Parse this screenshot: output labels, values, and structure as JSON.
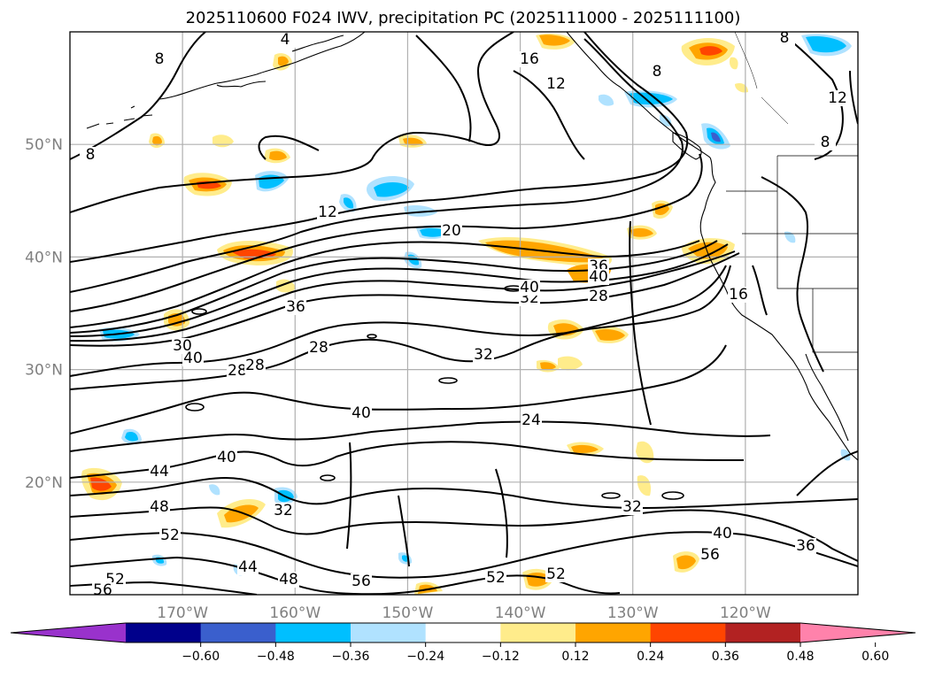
{
  "title": "2025110600 F024 IWV, precipitation PC (2025111000 - 2025111100)",
  "map": {
    "lon_range": [
      -180,
      -110
    ],
    "lat_range": [
      10,
      60
    ],
    "lat_ticks": [
      {
        "value": 20,
        "label": "20°N"
      },
      {
        "value": 30,
        "label": "30°N"
      },
      {
        "value": 40,
        "label": "40°N"
      },
      {
        "value": 50,
        "label": "50°N"
      }
    ],
    "lon_ticks": [
      {
        "value": -170,
        "label": "170°W"
      },
      {
        "value": -160,
        "label": "160°W"
      },
      {
        "value": -150,
        "label": "150°W"
      },
      {
        "value": -140,
        "label": "140°W"
      },
      {
        "value": -130,
        "label": "130°W"
      },
      {
        "value": -120,
        "label": "120°W"
      }
    ],
    "contour_labels": [
      "4",
      "8",
      "8",
      "8",
      "8",
      "8",
      "12",
      "12",
      "12",
      "16",
      "16",
      "20",
      "24",
      "28",
      "28",
      "28",
      "28",
      "30",
      "32",
      "32",
      "32",
      "32",
      "36",
      "36",
      "36",
      "40",
      "40",
      "40",
      "40",
      "40",
      "40",
      "44",
      "44",
      "48",
      "48",
      "52",
      "52",
      "52",
      "52",
      "56",
      "56",
      "56"
    ]
  },
  "colorbar": {
    "colors": [
      "#9932CC",
      "#00008B",
      "#3A5FCD",
      "#00BFFF",
      "#B0E2FF",
      "#FFFFFF",
      "#FFEC8B",
      "#FFA500",
      "#FF4500",
      "#B22222",
      "#FF82AB"
    ],
    "tick_labels": [
      "−0.60",
      "−0.48",
      "−0.36",
      "−0.24",
      "−0.12",
      "0.12",
      "0.24",
      "0.36",
      "0.48",
      "0.60"
    ]
  },
  "colors": {
    "contour": "#000000",
    "grid": "#b0b0b0",
    "coast": "#000000"
  }
}
